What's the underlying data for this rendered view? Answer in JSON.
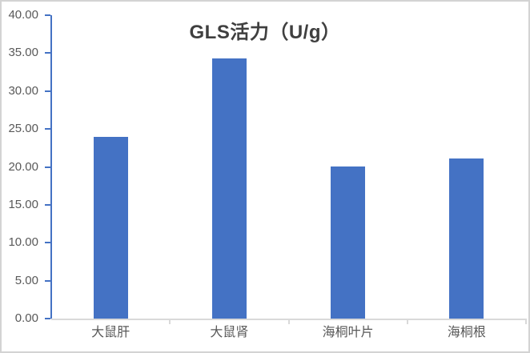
{
  "chart_data": {
    "type": "bar",
    "title": "GLS活力（U/g）",
    "categories": [
      "大鼠肝",
      "大鼠肾",
      "海桐叶片",
      "海桐根"
    ],
    "values": [
      24.0,
      34.3,
      20.1,
      21.1
    ],
    "xlabel": "",
    "ylabel": "",
    "ylim": [
      0,
      40
    ],
    "ytick_step": 5,
    "ytick_labels": [
      "0.00",
      "5.00",
      "10.00",
      "15.00",
      "20.00",
      "25.00",
      "30.00",
      "35.00",
      "40.00"
    ],
    "grid": false,
    "legend": false,
    "colors": {
      "bar": "#4472C4",
      "y_axis_line": "#4472C4",
      "y_tick": "#4472C4",
      "x_axis_line": "#D9D9D9",
      "x_tick": "#D9D9D9",
      "title_text": "#3F3F3F",
      "axis_label_text": "#595959",
      "frame_border": "#D3D3D3"
    }
  }
}
